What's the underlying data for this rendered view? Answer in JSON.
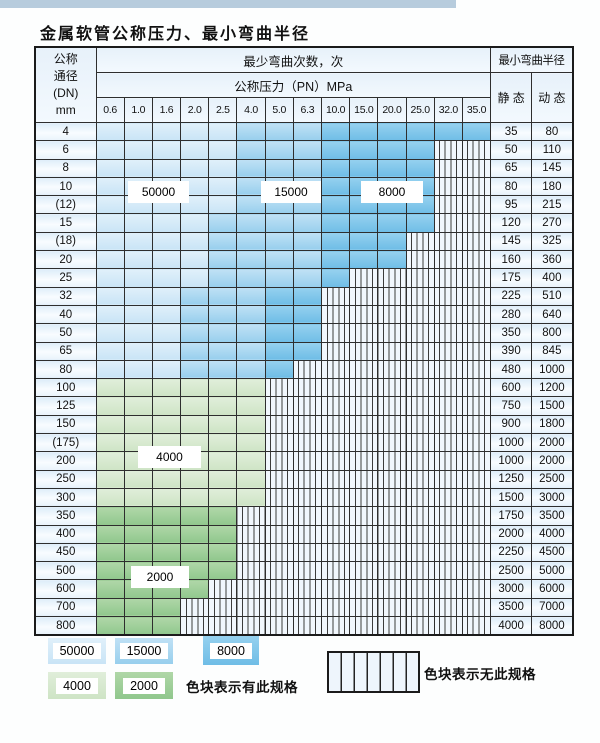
{
  "title": "金属软管公称压力、最小弯曲半径",
  "colors": {
    "blue_50000": "#c9e4f6",
    "blue_15000": "#98cfed",
    "blue_8000": "#6fbde6",
    "green_4000": "#cee4c5",
    "green_2000": "#90c78d",
    "hatch_bg": "#f1f7fd",
    "header_bg": "#e7f1fa",
    "border": "#2e2e2e",
    "top_strip": "#b7ccdd"
  },
  "table": {
    "corner_lines": "公称\n通径\n(DN)\nmm",
    "span_header": "最少弯曲次数，次",
    "pressure_header": "公称压力（PN）MPa",
    "pressures": [
      "0.6",
      "1.0",
      "1.6",
      "2.0",
      "2.5",
      "4.0",
      "5.0",
      "6.3",
      "10.0",
      "15.0",
      "20.0",
      "25.0",
      "32.0",
      "35.0"
    ],
    "radius_header": "最小弯曲半径",
    "static_label": "静 态",
    "dynamic_label": "动 态",
    "rows": [
      {
        "dn": "4",
        "shade": "blue",
        "light_to": "2.5",
        "med_to": "6.3",
        "colored_to": "35.0",
        "static": "35",
        "dynamic": "80"
      },
      {
        "dn": "6",
        "shade": "blue",
        "light_to": "2.5",
        "med_to": "6.3",
        "colored_to": "25.0",
        "static": "50",
        "dynamic": "110"
      },
      {
        "dn": "8",
        "shade": "blue",
        "light_to": "2.5",
        "med_to": "6.3",
        "colored_to": "25.0",
        "static": "65",
        "dynamic": "145"
      },
      {
        "dn": "10",
        "shade": "blue",
        "light_to": "2.5",
        "med_to": "6.3",
        "colored_to": "25.0",
        "static": "80",
        "dynamic": "180"
      },
      {
        "dn": "(12)",
        "shade": "blue",
        "light_to": "2.5",
        "med_to": "6.3",
        "colored_to": "25.0",
        "static": "95",
        "dynamic": "215"
      },
      {
        "dn": "15",
        "shade": "blue",
        "light_to": "2.0",
        "med_to": "6.3",
        "colored_to": "25.0",
        "static": "120",
        "dynamic": "270"
      },
      {
        "dn": "(18)",
        "shade": "blue",
        "light_to": "2.0",
        "med_to": "6.3",
        "colored_to": "20.0",
        "static": "145",
        "dynamic": "325"
      },
      {
        "dn": "20",
        "shade": "blue",
        "light_to": "2.0",
        "med_to": "6.3",
        "colored_to": "20.0",
        "static": "160",
        "dynamic": "360"
      },
      {
        "dn": "25",
        "shade": "blue",
        "light_to": "2.0",
        "med_to": "6.3",
        "colored_to": "10.0",
        "static": "175",
        "dynamic": "400"
      },
      {
        "dn": "32",
        "shade": "blue",
        "light_to": "1.6",
        "med_to": "4.0",
        "colored_to": "6.3",
        "static": "225",
        "dynamic": "510"
      },
      {
        "dn": "40",
        "shade": "blue",
        "light_to": "1.6",
        "med_to": "4.0",
        "colored_to": "6.3",
        "static": "280",
        "dynamic": "640"
      },
      {
        "dn": "50",
        "shade": "blue",
        "light_to": "1.6",
        "med_to": "4.0",
        "colored_to": "6.3",
        "static": "350",
        "dynamic": "800"
      },
      {
        "dn": "65",
        "shade": "blue",
        "light_to": "1.6",
        "med_to": "4.0",
        "colored_to": "6.3",
        "static": "390",
        "dynamic": "845"
      },
      {
        "dn": "80",
        "shade": "blue",
        "light_to": "1.6",
        "med_to": "4.0",
        "colored_to": "5.0",
        "static": "480",
        "dynamic": "1000"
      },
      {
        "dn": "100",
        "shade": "g4000",
        "colored_to": "4.0",
        "static": "600",
        "dynamic": "1200"
      },
      {
        "dn": "125",
        "shade": "g4000",
        "colored_to": "4.0",
        "static": "750",
        "dynamic": "1500"
      },
      {
        "dn": "150",
        "shade": "g4000",
        "colored_to": "4.0",
        "static": "900",
        "dynamic": "1800"
      },
      {
        "dn": "(175)",
        "shade": "g4000",
        "colored_to": "4.0",
        "static": "1000",
        "dynamic": "2000"
      },
      {
        "dn": "200",
        "shade": "g4000",
        "colored_to": "4.0",
        "static": "1000",
        "dynamic": "2000"
      },
      {
        "dn": "250",
        "shade": "g4000",
        "colored_to": "4.0",
        "static": "1250",
        "dynamic": "2500"
      },
      {
        "dn": "300",
        "shade": "g4000",
        "colored_to": "4.0",
        "static": "1500",
        "dynamic": "3000"
      },
      {
        "dn": "350",
        "shade": "g2000",
        "colored_to": "2.5",
        "static": "1750",
        "dynamic": "3500"
      },
      {
        "dn": "400",
        "shade": "g2000",
        "colored_to": "2.5",
        "static": "2000",
        "dynamic": "4000"
      },
      {
        "dn": "450",
        "shade": "g2000",
        "colored_to": "2.5",
        "static": "2250",
        "dynamic": "4500"
      },
      {
        "dn": "500",
        "shade": "g2000",
        "colored_to": "2.5",
        "static": "2500",
        "dynamic": "5000"
      },
      {
        "dn": "600",
        "shade": "g2000",
        "colored_to": "2.0",
        "static": "3000",
        "dynamic": "6000"
      },
      {
        "dn": "700",
        "shade": "g2000",
        "colored_to": "1.6",
        "static": "3500",
        "dynamic": "7000"
      },
      {
        "dn": "800",
        "shade": "g2000",
        "colored_to": "1.6",
        "static": "4000",
        "dynamic": "8000"
      }
    ]
  },
  "overlays": {
    "cycles_50000": "50000",
    "cycles_15000": "15000",
    "cycles_8000": "8000",
    "cycles_4000": "4000",
    "cycles_2000": "2000"
  },
  "legend": {
    "swatch_50000": "50000",
    "swatch_15000": "15000",
    "swatch_8000": "8000",
    "swatch_4000": "4000",
    "swatch_2000": "2000",
    "has_spec_note": "色块表示有此规格",
    "no_spec_note": "色块表示无此规格"
  }
}
